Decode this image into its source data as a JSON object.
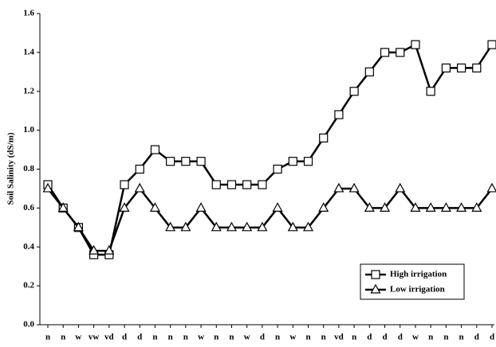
{
  "chart_data": {
    "type": "line",
    "y_label": "Soil Salinity (dS/m)",
    "categories": [
      "n",
      "n",
      "w",
      "vw",
      "vd",
      "d",
      "d",
      "n",
      "n",
      "n",
      "w",
      "n",
      "n",
      "w",
      "d",
      "n",
      "w",
      "n",
      "n",
      "vd",
      "n",
      "d",
      "d",
      "d",
      "w",
      "n",
      "n",
      "n",
      "d",
      "d"
    ],
    "series": [
      {
        "name": "High irrigation",
        "color": "#000000",
        "marker": "square",
        "values": [
          0.72,
          0.6,
          0.5,
          0.36,
          0.36,
          0.72,
          0.8,
          0.9,
          0.84,
          0.84,
          0.84,
          0.72,
          0.72,
          0.72,
          0.72,
          0.8,
          0.84,
          0.84,
          0.96,
          1.08,
          1.2,
          1.3,
          1.4,
          1.4,
          1.44,
          1.2,
          1.32,
          1.32,
          1.32,
          1.44
        ]
      },
      {
        "name": "Low irrigation",
        "color": "#000000",
        "marker": "triangle",
        "values": [
          0.7,
          0.6,
          0.5,
          0.38,
          0.38,
          0.6,
          0.7,
          0.6,
          0.5,
          0.5,
          0.6,
          0.5,
          0.5,
          0.5,
          0.5,
          0.6,
          0.5,
          0.5,
          0.6,
          0.7,
          0.7,
          0.6,
          0.6,
          0.7,
          0.6,
          0.6,
          0.6,
          0.6,
          0.6,
          0.7
        ]
      }
    ],
    "ylim": [
      0,
      1.6
    ],
    "yticks": [
      {
        "value": 0,
        "label": "0.0"
      },
      0.2,
      0.4,
      0.6,
      0.8,
      {
        "value": 1,
        "label": "1.0"
      },
      1.2,
      1.4,
      1.6
    ],
    "legend": "lower right"
  }
}
